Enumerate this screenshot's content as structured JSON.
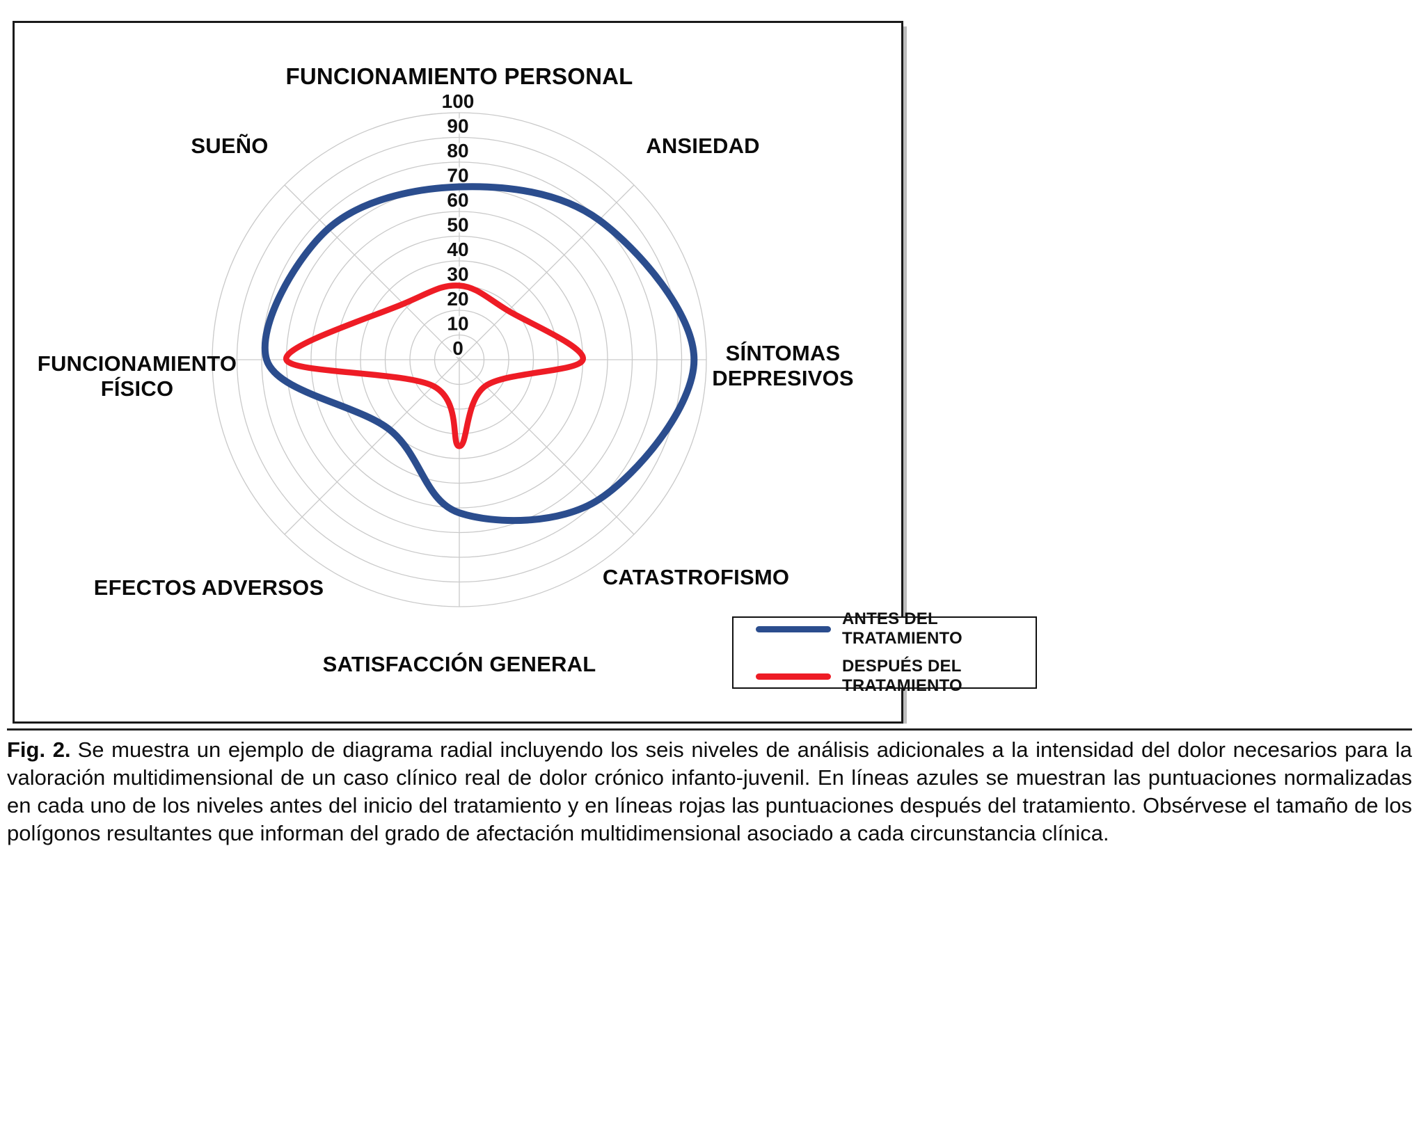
{
  "figure": {
    "fig_label": "Fig. 2.",
    "caption": "Se muestra un ejemplo de diagrama radial incluyendo los seis niveles de análisis adicionales a la intensidad del dolor necesarios para la valoración multidimensional de un caso clínico real de dolor crónico infanto-juvenil. En líneas azules se muestran las puntuaciones normalizadas en cada uno de los niveles antes del inicio del tratamiento y en líneas rojas las puntuaciones después del tratamiento. Obsérvese el tamaño de los polígonos resultantes que informan del grado de afectación multidimensional asociado a cada circunstancia clínica."
  },
  "legend": {
    "items": [
      {
        "label": "ANTES DEL TRATAMIENTO",
        "color": "#2b4d8e"
      },
      {
        "label": "DESPUÉS DEL TRATAMIENTO",
        "color": "#ee1c25"
      }
    ]
  },
  "chart_data": {
    "type": "radar",
    "title": "",
    "categories": [
      "FUNCIONAMIENTO PERSONAL",
      "ANSIEDAD",
      "SÍNTOMAS DEPRESIVOS",
      "CATASTROFISMO",
      "SATISFACCIÓN GENERAL",
      "EFECTOS ADVERSOS",
      "FUNCIONAMIENTO FÍSICO",
      "SUEÑO"
    ],
    "series": [
      {
        "name": "ANTES DEL TRATAMIENTO",
        "color": "#2b4d8e",
        "values": [
          70,
          80,
          95,
          80,
          62,
          40,
          78,
          75
        ]
      },
      {
        "name": "DESPUÉS DEL TRATAMIENTO",
        "color": "#ee1c25",
        "values": [
          30,
          28,
          50,
          15,
          35,
          15,
          70,
          32
        ]
      }
    ],
    "radial_axis": {
      "min": 0,
      "max": 100,
      "tick_step": 10,
      "ticks": [
        0,
        10,
        20,
        30,
        40,
        50,
        60,
        70,
        80,
        90,
        100
      ]
    },
    "grid": "circular",
    "legend_position": "bottom-right",
    "grid_color": "#c9c9c9",
    "tick_color": "#111111",
    "axis_labels": [
      {
        "text": "FUNCIONAMIENTO PERSONAL"
      },
      {
        "text": "ANSIEDAD"
      },
      {
        "text": "SÍNTOMAS\nDEPRESIVOS"
      },
      {
        "text": "CATASTROFISMO"
      },
      {
        "text": "SATISFACCIÓN GENERAL"
      },
      {
        "text": "EFECTOS ADVERSOS"
      },
      {
        "text": "FUNCIONAMIENTO\nFÍSICO"
      },
      {
        "text": "SUEÑO"
      }
    ]
  }
}
